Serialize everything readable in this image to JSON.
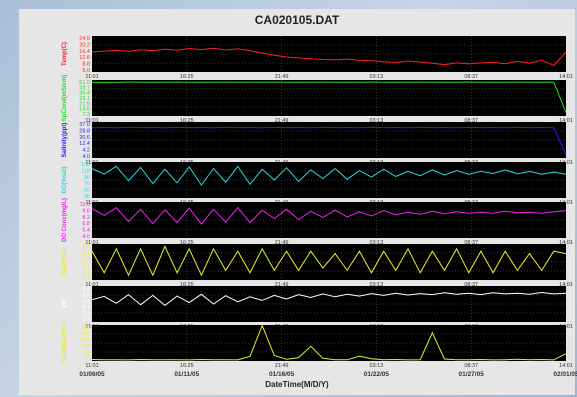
{
  "chart_data": {
    "type": "line",
    "title": "CA020105.DAT",
    "xlabel": "DateTime(M/D/Y)",
    "time_ticks": [
      "11:01",
      "16:25",
      "21:49",
      "03:13",
      "08:37",
      "14:01"
    ],
    "date_ticks": [
      "01/06/05",
      "01/11/05",
      "01/16/05",
      "01/22/05",
      "01/27/05",
      "02/01/05"
    ],
    "grid": true,
    "background": "#000000",
    "panels": [
      {
        "name": "Temp(C)",
        "color": "#ff2020",
        "yticks": [
          "24.0",
          "20.2",
          "16.4",
          "12.6",
          "8.8",
          "5.0"
        ],
        "ylim": [
          5.0,
          24.0
        ],
        "values": [
          15.6,
          16.0,
          16.4,
          15.9,
          16.7,
          16.3,
          17.1,
          16.5,
          17.4,
          16.8,
          17.5,
          16.6,
          17.3,
          16.2,
          15.0,
          13.8,
          12.9,
          12.4,
          12.0,
          11.6,
          11.4,
          11.8,
          11.2,
          10.9,
          10.4,
          10.0,
          10.8,
          10.3,
          9.6,
          8.9,
          9.8,
          9.3,
          9.8,
          10.1,
          9.4,
          10.6,
          9.7,
          11.2,
          8.5,
          15.5
        ]
      },
      {
        "name": "SpCond(mS/cm)",
        "color": "#22dd22",
        "yticks": [
          "51.0",
          "43.7",
          "36.4",
          "29.1",
          "21.9",
          "14.6",
          "7.3"
        ],
        "ylim": [
          0,
          51.0
        ],
        "values": [
          47.5,
          47.9,
          47.6,
          48.1,
          47.8,
          48.0,
          47.7,
          48.2,
          47.9,
          48.0,
          47.8,
          48.1,
          47.9,
          48.0,
          47.7,
          48.1,
          47.9,
          48.0,
          47.8,
          48.2,
          47.9,
          48.0,
          47.8,
          48.1,
          47.9,
          48.0,
          47.7,
          48.1,
          47.9,
          48.0,
          47.8,
          48.1,
          47.9,
          48.0,
          47.8,
          48.1,
          47.9,
          48.0,
          47.8,
          5.0
        ]
      },
      {
        "name": "Salinity(ppt)",
        "color": "#2222ee",
        "yticks": [
          "37.0",
          "28.8",
          "20.6",
          "12.4",
          "4.2",
          "4.0"
        ],
        "ylim": [
          0,
          37.0
        ],
        "values": [
          31.0,
          31.3,
          31.1,
          31.4,
          31.2,
          31.3,
          31.1,
          31.5,
          31.2,
          31.3,
          31.1,
          31.4,
          31.2,
          31.3,
          31.0,
          31.4,
          31.2,
          31.3,
          31.1,
          31.5,
          31.2,
          31.3,
          31.1,
          31.4,
          31.2,
          31.3,
          31.0,
          31.4,
          31.2,
          31.3,
          31.1,
          31.4,
          31.2,
          31.3,
          31.1,
          31.4,
          31.2,
          31.3,
          31.1,
          3.0
        ]
      },
      {
        "name": "DO(%sat)",
        "color": "#22dddd",
        "yticks": [
          "130",
          "110",
          "90",
          "70",
          "50",
          "30"
        ],
        "ylim": [
          30,
          130
        ],
        "values": [
          112,
          96,
          118,
          78,
          115,
          70,
          110,
          72,
          116,
          66,
          112,
          74,
          118,
          68,
          110,
          80,
          114,
          76,
          108,
          84,
          112,
          82,
          106,
          88,
          110,
          90,
          104,
          92,
          108,
          94,
          106,
          96,
          104,
          98,
          108,
          97,
          104,
          96,
          102,
          96
        ]
      },
      {
        "name": "DO Conc(mg/L)",
        "color": "#ee22ee",
        "yticks": [
          "11.0",
          "9.6",
          "8.2",
          "6.8",
          "5.4",
          "4.0"
        ],
        "ylim": [
          4.0,
          11.0
        ],
        "values": [
          9.7,
          8.4,
          9.9,
          7.2,
          9.6,
          6.8,
          9.5,
          7.0,
          9.8,
          6.7,
          9.6,
          7.1,
          9.9,
          7.0,
          9.4,
          7.8,
          9.6,
          7.6,
          9.2,
          8.0,
          9.4,
          8.1,
          9.1,
          8.3,
          9.3,
          8.5,
          9.0,
          8.6,
          9.2,
          8.7,
          9.1,
          8.8,
          9.0,
          8.8,
          9.2,
          8.9,
          9.0,
          8.8,
          9.1,
          9.3
        ]
      },
      {
        "name": "Depth(m)",
        "color": "#eeee22",
        "yticks": [
          "2.6",
          "2.3",
          "2.0",
          "1.7",
          "1.4",
          "1.1"
        ],
        "ylim": [
          1.1,
          2.6
        ],
        "values": [
          2.3,
          1.4,
          2.4,
          1.3,
          2.4,
          1.3,
          2.5,
          1.4,
          2.4,
          1.3,
          2.4,
          1.5,
          2.3,
          1.4,
          2.4,
          1.5,
          2.3,
          1.5,
          2.3,
          1.6,
          2.2,
          1.5,
          2.3,
          1.4,
          2.3,
          1.5,
          2.4,
          1.4,
          2.3,
          1.5,
          2.4,
          1.4,
          2.3,
          1.4,
          2.3,
          1.5,
          2.2,
          1.5,
          2.3,
          2.2
        ]
      },
      {
        "name": "pH",
        "color": "#ffffff",
        "yticks": [
          "8.7",
          "8.5",
          "8.3",
          "8.1",
          "7.9",
          "7.7"
        ],
        "ylim": [
          7.7,
          8.7
        ],
        "values": [
          8.32,
          8.41,
          8.22,
          8.46,
          8.18,
          8.44,
          8.16,
          8.42,
          8.24,
          8.47,
          8.2,
          8.43,
          8.26,
          8.4,
          8.3,
          8.44,
          8.34,
          8.46,
          8.38,
          8.48,
          8.4,
          8.47,
          8.42,
          8.49,
          8.44,
          8.5,
          8.45,
          8.49,
          8.46,
          8.51,
          8.47,
          8.5,
          8.46,
          8.51,
          8.48,
          8.5,
          8.47,
          8.52,
          8.48,
          8.5
        ]
      },
      {
        "name": "Turbidity(NTU)",
        "color": "#eeee22",
        "yticks": [
          "294",
          "236",
          "177",
          "118",
          "59",
          "0"
        ],
        "ylim": [
          0,
          294
        ],
        "values": [
          12,
          10,
          11,
          9,
          12,
          10,
          11,
          10,
          9,
          12,
          10,
          11,
          9,
          38,
          290,
          45,
          14,
          28,
          120,
          22,
          11,
          10,
          40,
          18,
          10,
          12,
          9,
          11,
          230,
          16,
          11,
          10,
          12,
          9,
          11,
          14,
          10,
          12,
          9,
          60
        ]
      }
    ]
  }
}
